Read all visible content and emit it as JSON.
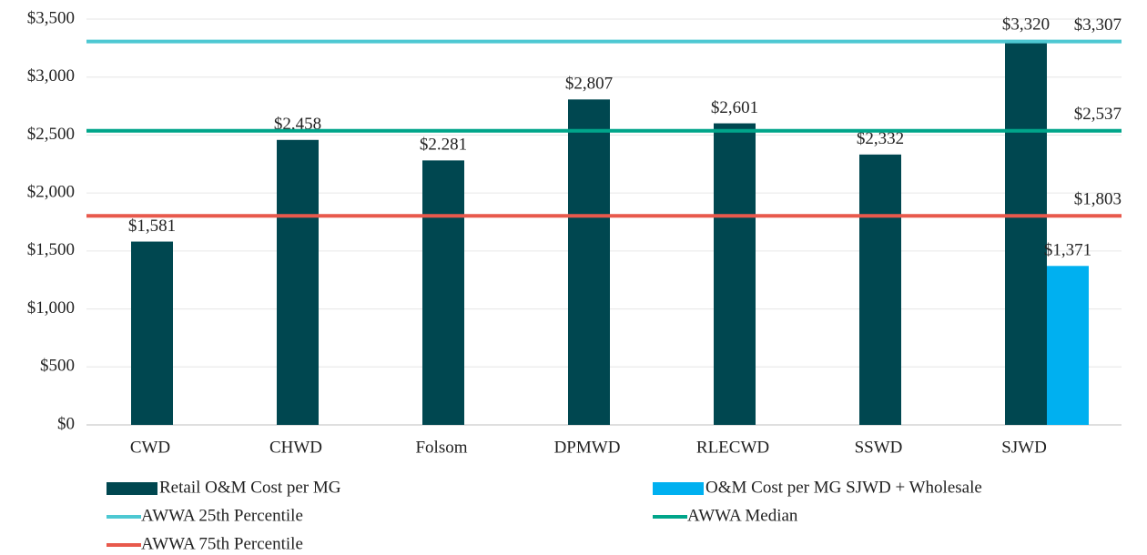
{
  "chart_data": {
    "type": "bar",
    "categories": [
      "CWD",
      "CHWD",
      "Folsom",
      "DPMWD",
      "RLECWD",
      "SSWD",
      "SJWD"
    ],
    "series": [
      {
        "name": "Retail O&M Cost per MG",
        "color": "#004750",
        "values": [
          1581,
          2458,
          2281,
          2807,
          2601,
          2332,
          3320
        ],
        "value_labels": [
          "$1,581",
          "$2,458",
          "$2.281",
          "$2,807",
          "$2,601",
          "$2,332",
          "$3,320"
        ]
      },
      {
        "name": "O&M Cost per MG SJWD + Wholesale",
        "color": "#00b0f0",
        "values": [
          null,
          null,
          null,
          null,
          null,
          null,
          1371
        ],
        "value_labels": [
          null,
          null,
          null,
          null,
          null,
          null,
          "$1,371"
        ]
      }
    ],
    "reference_lines": [
      {
        "name": "AWWA 25th Percentile",
        "color": "#4dc8d2",
        "value": 3307,
        "value_label": "$3,307"
      },
      {
        "name": "AWWA Median",
        "color": "#00a58a",
        "value": 2537,
        "value_label": "$2,537"
      },
      {
        "name": "AWWA 75th Percentile",
        "color": "#e8594c",
        "value": 1803,
        "value_label": "$1,803"
      }
    ],
    "ylim": [
      0,
      3500
    ],
    "yticks": [
      {
        "value": 0,
        "label": "$0"
      },
      {
        "value": 500,
        "label": "$500"
      },
      {
        "value": 1000,
        "label": "$1,000"
      },
      {
        "value": 1500,
        "label": "$1,500"
      },
      {
        "value": 2000,
        "label": "$2,000"
      },
      {
        "value": 2500,
        "label": "$2,500"
      },
      {
        "value": 3000,
        "label": "$3,000"
      },
      {
        "value": 3500,
        "label": "$3,500"
      }
    ],
    "grid": true
  }
}
